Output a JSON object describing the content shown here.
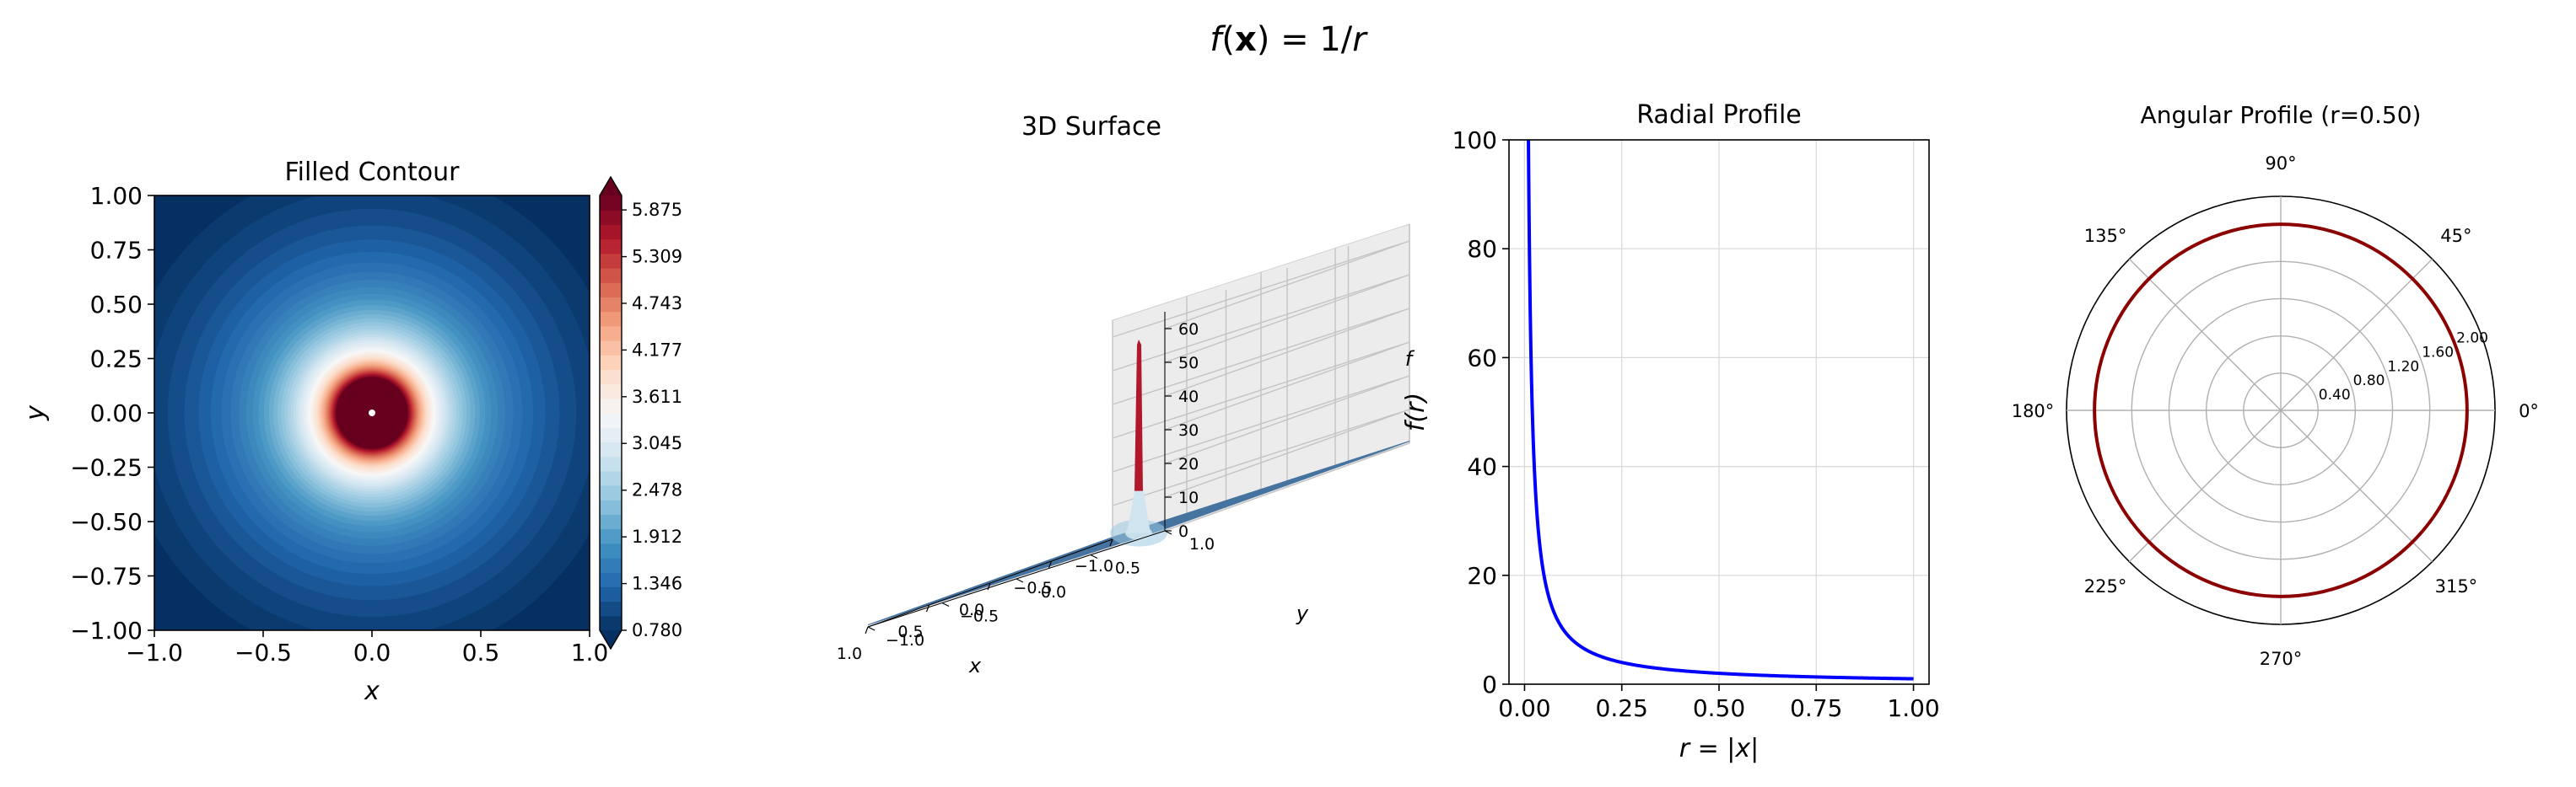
{
  "suptitle": {
    "f": "f",
    "x": "x",
    "rest": ") = 1/",
    "r": "r",
    "open": "("
  },
  "colors": {
    "surface_low": "#2c5c8c",
    "surface_peak": "#b2182b",
    "radial_line": "#0000ff",
    "polar_line": "#8b0000",
    "grid": "#d8d8d8"
  },
  "chart_data": [
    {
      "type": "heatmap",
      "title": "Filled Contour",
      "xlabel": "x",
      "ylabel": "y",
      "function": "1/r",
      "xlim": [
        -1.0,
        1.0
      ],
      "ylim": [
        -1.0,
        1.0
      ],
      "x_ticks": [
        "−1.0",
        "−0.5",
        "0.0",
        "0.5",
        "1.0"
      ],
      "y_ticks": [
        "1.00",
        "0.75",
        "0.50",
        "0.25",
        "0.00",
        "−0.25",
        "−0.50",
        "−0.75",
        "−1.00"
      ],
      "colorbar": {
        "colormap": "RdBu_r",
        "range": [
          0.78,
          6.1
        ],
        "extend": "both",
        "ticks": [
          "5.875",
          "5.309",
          "4.743",
          "4.177",
          "3.611",
          "3.045",
          "2.478",
          "1.912",
          "1.346",
          "0.780"
        ],
        "tick_values": [
          5.875,
          5.309,
          4.743,
          4.177,
          3.611,
          3.045,
          2.478,
          1.912,
          1.346,
          0.78
        ]
      }
    },
    {
      "type": "surface",
      "title": "3D Surface",
      "xlabel": "x",
      "ylabel": "y",
      "zlabel": "f",
      "x_ticks": [
        "−1.0",
        "−0.5",
        "0.0",
        "0.5",
        "1.0"
      ],
      "y_ticks": [
        "−1.0",
        "−0.5",
        "0.0",
        "0.5",
        "1.0"
      ],
      "z_ticks": [
        "0",
        "10",
        "20",
        "30",
        "40",
        "50",
        "60"
      ],
      "z_tick_values": [
        0,
        10,
        20,
        30,
        40,
        50,
        60
      ],
      "zlim": [
        0,
        65
      ],
      "peak_value": 58
    },
    {
      "type": "line",
      "title": "Radial Profile",
      "xlabel": "r = |x|",
      "ylabel": "f(r)",
      "function": "1/r",
      "xlim": [
        -0.04,
        1.04
      ],
      "ylim": [
        0,
        100
      ],
      "x_ticks": [
        "0.00",
        "0.25",
        "0.50",
        "0.75",
        "1.00"
      ],
      "x_tick_values": [
        0,
        0.25,
        0.5,
        0.75,
        1.0
      ],
      "y_ticks": [
        "0",
        "20",
        "40",
        "60",
        "80",
        "100"
      ],
      "y_tick_values": [
        0,
        20,
        40,
        60,
        80,
        100
      ],
      "x_range": [
        0.01,
        1.0
      ],
      "grid": true
    },
    {
      "type": "polar",
      "title": "Angular Profile (r=0.50)",
      "radius_value": 2.0,
      "rlim": [
        0,
        2.3
      ],
      "r_ticks": [
        "0.40",
        "0.80",
        "1.20",
        "1.60",
        "2.00"
      ],
      "r_tick_values": [
        0.4,
        0.8,
        1.2,
        1.6,
        2.0
      ],
      "theta_ticks": [
        "0°",
        "45°",
        "90°",
        "135°",
        "180°",
        "225°",
        "270°",
        "315°"
      ],
      "theta_tick_values": [
        0,
        45,
        90,
        135,
        180,
        225,
        270,
        315
      ],
      "grid": true
    }
  ]
}
